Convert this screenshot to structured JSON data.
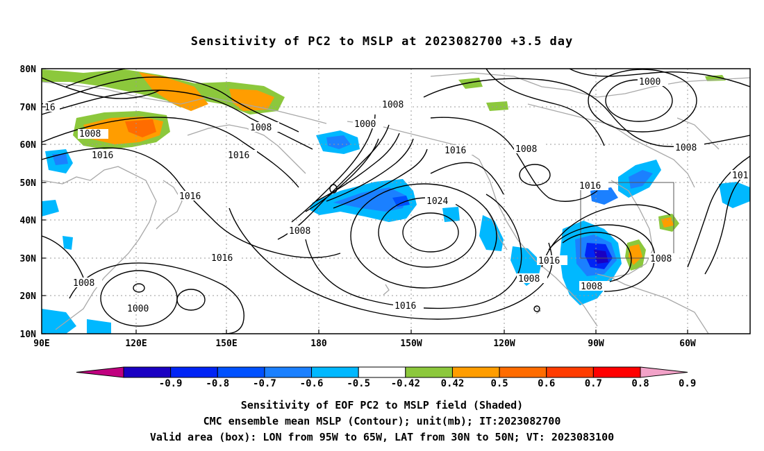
{
  "title": "Sensitivity of PC2 to MSLP at 2023082700 +3.5 day",
  "map": {
    "lat_labels": [
      "80N",
      "70N",
      "60N",
      "50N",
      "40N",
      "30N",
      "20N",
      "10N"
    ],
    "lon_labels": [
      "90E",
      "120E",
      "150E",
      "180",
      "150W",
      "120W",
      "90W",
      "60W"
    ],
    "contour_labels": [
      "16",
      "1008",
      "1016",
      "1016",
      "1016",
      "1008",
      "1008",
      "1000",
      "1008",
      "1016",
      "1008",
      "1024",
      "1016",
      "1008",
      "1016",
      "1000",
      "1008",
      "1008",
      "1016",
      "1016",
      "1008",
      "1008",
      "1000",
      "1008",
      "101"
    ],
    "box_label": "Valid area box"
  },
  "colorbar": {
    "labels": [
      "-0.9",
      "-0.8",
      "-0.7",
      "-0.6",
      "-0.5",
      "-0.42",
      "0.42",
      "0.5",
      "0.6",
      "0.7",
      "0.8",
      "0.9"
    ],
    "colors": [
      "#c0007f",
      "#1a00c2",
      "#0024f5",
      "#0051ff",
      "#1b80ff",
      "#00b8ff",
      "#ffffff",
      "#8cc83c",
      "#ff9d00",
      "#ff6c00",
      "#ff3c00",
      "#ff0000",
      "#f2a2c8"
    ]
  },
  "captions": {
    "line1": "Sensitivity of EOF PC2 to MSLP field (Shaded)",
    "line2": "CMC ensemble mean MSLP (Contour); unit(mb); IT:2023082700",
    "line3": "Valid area (box): LON from 95W to 65W, LAT from 30N to 50N; VT: 2023083100"
  }
}
